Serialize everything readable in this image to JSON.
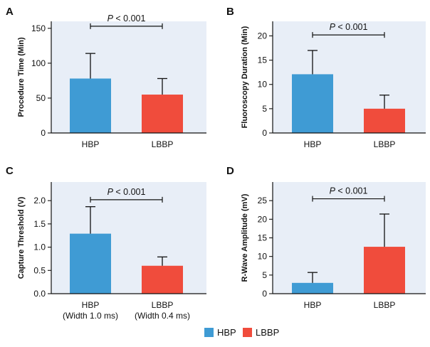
{
  "colors": {
    "hbp": "#3f9bd4",
    "lbbp": "#f04c3c",
    "plot_bg": "#e8eef7",
    "ink": "#111111"
  },
  "legend": [
    {
      "label": "HBP",
      "color": "#3f9bd4"
    },
    {
      "label": "LBBP",
      "color": "#f04c3c"
    }
  ],
  "chart_data": [
    {
      "type": "bar",
      "panel": "A",
      "ylabel": "Procedure Time (Min)",
      "categories": [
        [
          "HBP"
        ],
        [
          "LBBP"
        ]
      ],
      "values": [
        78,
        55
      ],
      "errors": [
        36,
        23
      ],
      "ylim": [
        0,
        160
      ],
      "yticks": [
        0,
        50,
        100,
        150
      ],
      "ytick_labels": [
        "0",
        "50",
        "100",
        "150"
      ],
      "significance": {
        "italic": "P",
        "text": " < 0.001",
        "level": 153
      }
    },
    {
      "type": "bar",
      "panel": "B",
      "ylabel": "Fluoroscopy Duration (Min)",
      "categories": [
        [
          "HBP"
        ],
        [
          "LBBP"
        ]
      ],
      "values": [
        12.1,
        5.0
      ],
      "errors": [
        4.9,
        2.8
      ],
      "ylim": [
        0,
        23
      ],
      "yticks": [
        0,
        5,
        10,
        15,
        20
      ],
      "ytick_labels": [
        "0",
        "5",
        "10",
        "15",
        "20"
      ],
      "significance": {
        "italic": "P",
        "text": " < 0.001",
        "level": 20.2
      }
    },
    {
      "type": "bar",
      "panel": "C",
      "ylabel": "Capture Threshold (V)",
      "categories": [
        [
          "HBP",
          "(Width 1.0 ms)"
        ],
        [
          "LBBP",
          "(Width 0.4 ms)"
        ]
      ],
      "values": [
        1.29,
        0.6
      ],
      "errors": [
        0.58,
        0.19
      ],
      "ylim": [
        0,
        2.4
      ],
      "yticks": [
        0,
        0.5,
        1.0,
        1.5,
        2.0
      ],
      "ytick_labels": [
        "0.0",
        "0.5",
        "1.0",
        "1.5",
        "2.0"
      ],
      "significance": {
        "italic": "P",
        "text": " < 0.001",
        "level": 2.02
      }
    },
    {
      "type": "bar",
      "panel": "D",
      "ylabel": "R-Wave Amplitude (mV)",
      "categories": [
        [
          "HBP"
        ],
        [
          "LBBP"
        ]
      ],
      "values": [
        2.9,
        12.6
      ],
      "errors": [
        2.8,
        8.8
      ],
      "ylim": [
        0,
        30
      ],
      "yticks": [
        0,
        5,
        10,
        15,
        20,
        25
      ],
      "ytick_labels": [
        "0",
        "5",
        "10",
        "15",
        "20",
        "25"
      ],
      "significance": {
        "italic": "P",
        "text": " < 0.001",
        "level": 25.5
      }
    }
  ]
}
